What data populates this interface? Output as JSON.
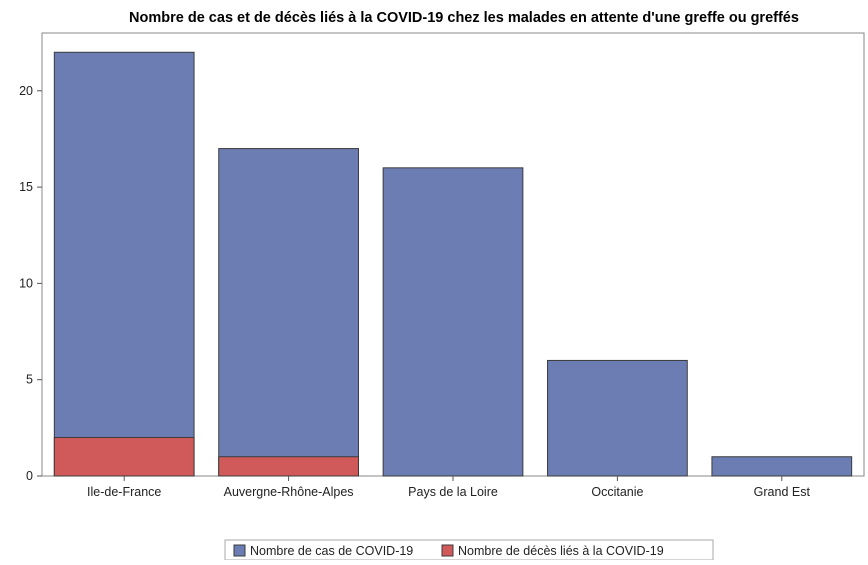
{
  "chart_data": {
    "type": "bar",
    "title": "Nombre de cas et de décès liés à la COVID-19 chez les malades en attente d'une greffe ou greffés",
    "categories": [
      "Ile-de-France",
      "Auvergne-Rhône-Alpes",
      "Pays de la Loire",
      "Occitanie",
      "Grand Est"
    ],
    "series": [
      {
        "name": "Nombre de cas de COVID-19",
        "values": [
          22,
          17,
          16,
          6,
          1
        ],
        "color": "#6b7db3"
      },
      {
        "name": "Nombre de décès liés à la COVID-19",
        "values": [
          2,
          1,
          0,
          0,
          0
        ],
        "color": "#d05a5a"
      }
    ],
    "overlay": true,
    "ylim": [
      0,
      23
    ],
    "yticks": [
      0,
      5,
      10,
      15,
      20
    ],
    "grid": false,
    "legend_position": "bottom"
  }
}
